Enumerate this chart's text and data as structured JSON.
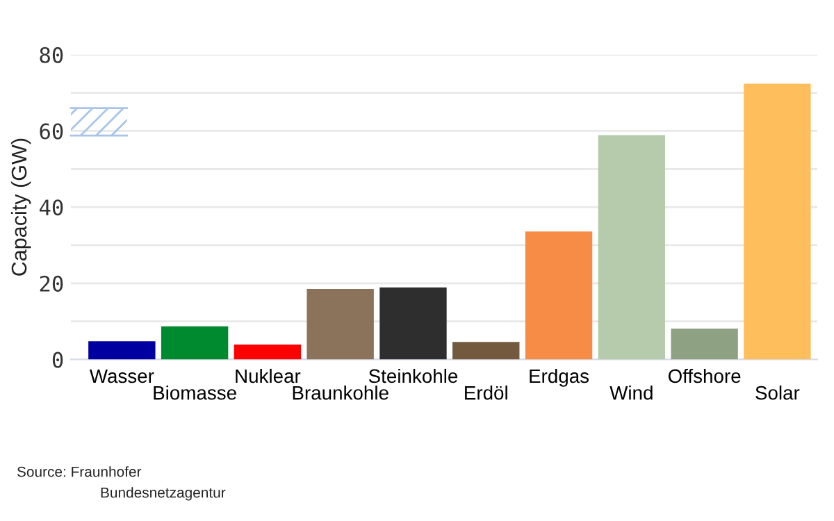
{
  "chart_data": {
    "type": "bar",
    "ylabel": "Capacity (GW)",
    "categories": [
      "Wasser",
      "Biomasse",
      "Nuklear",
      "Braunkohle",
      "Steinkohle",
      "Erdöl",
      "Erdgas",
      "Wind",
      "Offshore",
      "Solar"
    ],
    "values": [
      4.8,
      8.7,
      3.9,
      18.5,
      18.9,
      4.6,
      33.6,
      58.9,
      8.1,
      72.4
    ],
    "colors": [
      "#0000a0",
      "#008a30",
      "#ff0000",
      "#8b725a",
      "#2e2e2e",
      "#735a3f",
      "#f68c46",
      "#b5cbab",
      "#8fa183",
      "#ffbe5c"
    ],
    "ylim": [
      0,
      80
    ],
    "yticks": [
      0,
      {
        "value": 10,
        "label": null
      },
      20,
      {
        "value": 30,
        "label": null
      },
      40,
      {
        "value": 50,
        "label": null
      },
      60,
      {
        "value": 70,
        "label": null
      },
      80
    ],
    "grid": "y",
    "annotations": [
      "Source: Fraunhofer",
      "Bundesnetzagentur"
    ]
  }
}
